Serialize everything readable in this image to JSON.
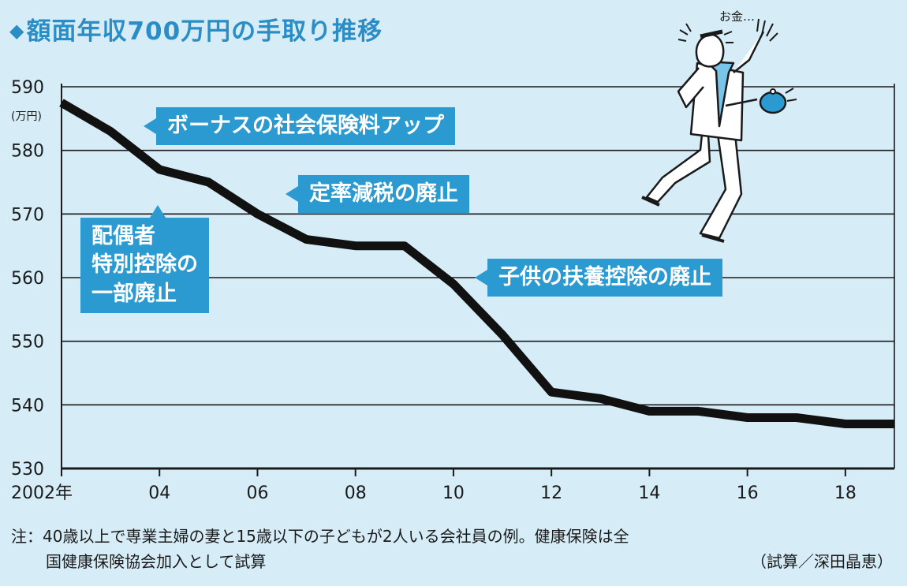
{
  "title": "額面年収700万円の手取り推移",
  "title_marker": "◆",
  "unit_label": "(万円)",
  "chart_data": {
    "type": "line",
    "title": "額面年収700万円の手取り推移",
    "ylabel": "(万円)",
    "ylim": [
      530,
      590
    ],
    "yticks": [
      530,
      540,
      550,
      560,
      570,
      580,
      590
    ],
    "xlim": [
      2002,
      2019
    ],
    "xticks": [
      {
        "x": 2002,
        "label": "2002年"
      },
      {
        "x": 2004,
        "label": "04"
      },
      {
        "x": 2006,
        "label": "06"
      },
      {
        "x": 2008,
        "label": "08"
      },
      {
        "x": 2010,
        "label": "10"
      },
      {
        "x": 2012,
        "label": "12"
      },
      {
        "x": 2014,
        "label": "14"
      },
      {
        "x": 2016,
        "label": "16"
      },
      {
        "x": 2018,
        "label": "18"
      }
    ],
    "grid": true,
    "series": [
      {
        "x": [
          2002,
          2003,
          2004,
          2005,
          2006,
          2007,
          2008,
          2009,
          2010,
          2011,
          2012,
          2013,
          2014,
          2015,
          2016,
          2017,
          2018,
          2019
        ],
        "values": [
          587.5,
          583,
          577,
          575,
          570,
          566,
          565,
          565,
          559,
          551,
          542,
          541,
          539,
          539,
          538,
          538,
          537,
          537
        ],
        "color": "#111111"
      }
    ],
    "annotations": [
      {
        "text": "ボーナスの社会保険料アップ"
      },
      {
        "text": "定率減税の廃止"
      },
      {
        "text": "配偶者\n特別控除の\n一部廃止"
      },
      {
        "text": "子供の扶養控除の廃止"
      }
    ]
  },
  "note": {
    "line1": "注：40歳以上で専業主婦の妻と15歳以下の子どもが2人いる会社員の例。健康保険は全",
    "line2": "国健康保険協会加入として試算"
  },
  "credit": "（試算／深田晶恵）",
  "illustration": {
    "speech": "お金…"
  },
  "colors": {
    "accent": "#2b9ad0",
    "title": "#2b8dc6",
    "background": "#d6edf8",
    "line": "#111111"
  }
}
